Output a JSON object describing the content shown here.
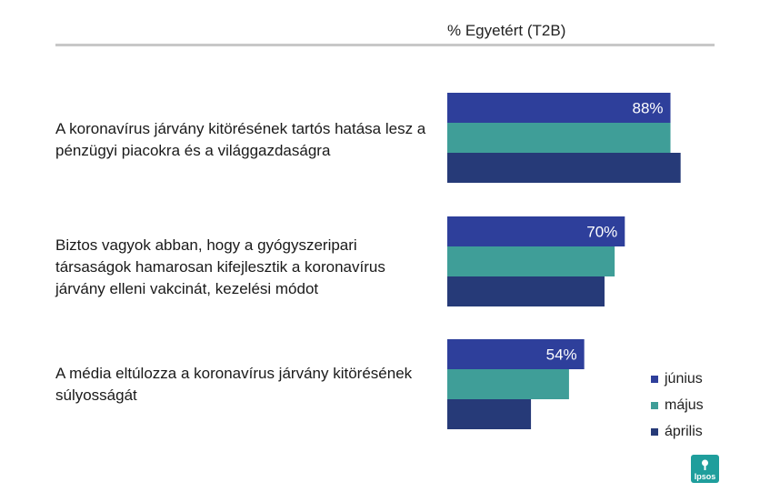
{
  "header": {
    "title": "% Egyetért (T2B)"
  },
  "chart_data": {
    "type": "bar",
    "orientation": "horizontal",
    "categories": [
      "A koronavírus járvány kitörésének tartós hatása lesz a pénzügyi piacokra és a világgazdaságra",
      "Biztos vagyok abban, hogy a gyógyszeripari társaságok hamarosan kifejlesztik a koronavírus járvány elleni vakcinát, kezelési módot",
      "A média eltúlozza a koronavírus járvány kitörésének súlyosságát"
    ],
    "series": [
      {
        "name": "június",
        "values": [
          88,
          70,
          54
        ],
        "color": "#2e3f9b"
      },
      {
        "name": "május",
        "values": [
          88,
          66,
          48
        ],
        "color": "#3f9e98"
      },
      {
        "name": "április",
        "values": [
          92,
          62,
          33
        ],
        "color": "#263a78"
      }
    ],
    "data_labels": [
      "88%",
      "70%",
      "54%"
    ],
    "data_label_color": "#ffffff",
    "xlim": [
      0,
      100
    ],
    "grid": false,
    "legend_position": "bottom-right"
  },
  "logo": {
    "text": "Ipsos",
    "color": "#1f9e9c"
  }
}
